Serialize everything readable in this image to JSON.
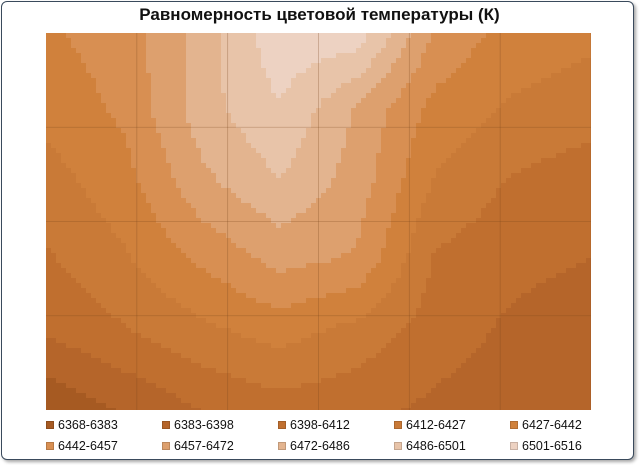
{
  "chart_data": {
    "type": "heatmap",
    "title": "Равномерность цветовой температуры (К)",
    "xlabel": "",
    "ylabel": "",
    "grid": true,
    "legend_position": "bottom",
    "contour_levels": [
      6368,
      6383,
      6398,
      6412,
      6427,
      6442,
      6457,
      6472,
      6486,
      6501,
      6516
    ],
    "bands": [
      {
        "label": "6368-6383",
        "color": "#a65a22"
      },
      {
        "label": "6383-6398",
        "color": "#b5652a"
      },
      {
        "label": "6398-6412",
        "color": "#c06f2f"
      },
      {
        "label": "6412-6427",
        "color": "#c97a37"
      },
      {
        "label": "6427-6442",
        "color": "#d0813c"
      },
      {
        "label": "6442-6457",
        "color": "#d88f52"
      },
      {
        "label": "6457-6472",
        "color": "#dda06e"
      },
      {
        "label": "6472-6486",
        "color": "#e3b48f"
      },
      {
        "label": "6486-6501",
        "color": "#e8c4a9"
      },
      {
        "label": "6501-6516",
        "color": "#edd2c2"
      }
    ],
    "grid_values": [
      [
        6440,
        6449,
        6478,
        6512,
        6510,
        6455,
        6435,
        6430
      ],
      [
        6432,
        6445,
        6480,
        6500,
        6470,
        6437,
        6425,
        6420
      ],
      [
        6420,
        6436,
        6468,
        6485,
        6465,
        6425,
        6410,
        6402
      ],
      [
        6410,
        6425,
        6445,
        6462,
        6455,
        6410,
        6402,
        6398
      ],
      [
        6399,
        6410,
        6422,
        6432,
        6420,
        6404,
        6395,
        6388
      ],
      [
        6370,
        6385,
        6398,
        6405,
        6402,
        6395,
        6392,
        6386
      ]
    ]
  }
}
